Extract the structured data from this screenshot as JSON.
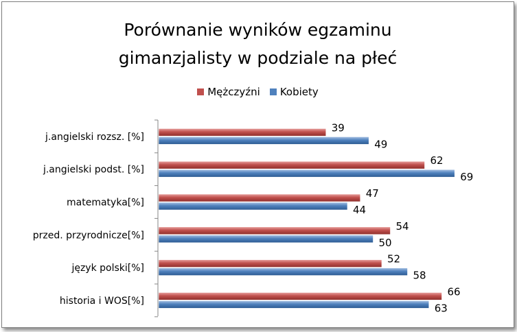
{
  "chart_data": {
    "type": "bar",
    "orientation": "horizontal",
    "title": "Porównanie wyników egzaminu gimanzjalisty w podziale na płeć",
    "title_lines": [
      "Porównanie wyników egzaminu",
      "gimanzjalisty w podziale na płeć"
    ],
    "categories": [
      "j.angielski rozsz. [%]",
      "j.angielski podst. [%]",
      "matematyka[%]",
      "przed. przyrodnicze[%]",
      "język polski[%]",
      "historia i WOS[%]"
    ],
    "series": [
      {
        "name": "Mężczyźni",
        "color": "#c0504d",
        "values": [
          39,
          62,
          47,
          54,
          52,
          66
        ]
      },
      {
        "name": "Kobiety",
        "color": "#4f81bd",
        "values": [
          49,
          69,
          44,
          50,
          58,
          63
        ]
      }
    ],
    "xlim": [
      0,
      75
    ],
    "legend_position": "top",
    "grid": false,
    "data_labels": true
  }
}
